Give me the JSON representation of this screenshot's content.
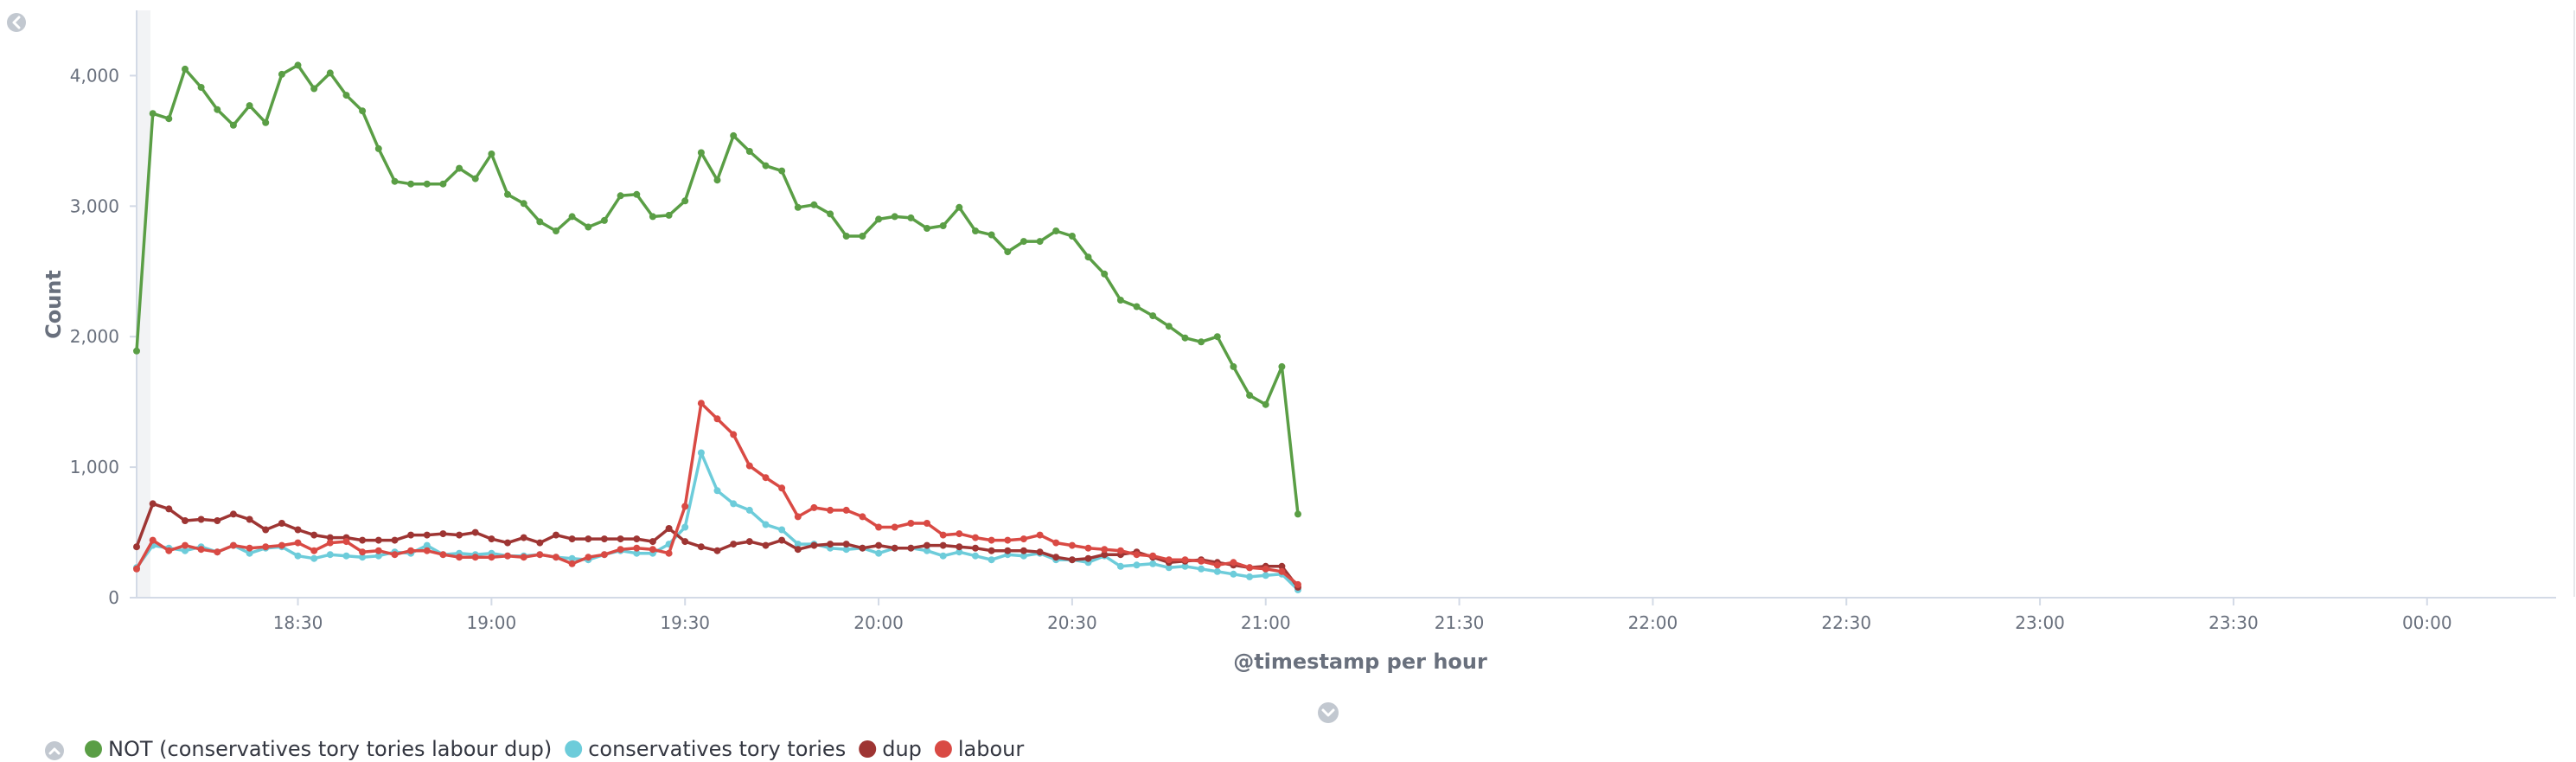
{
  "chart_data": {
    "type": "line",
    "title": "",
    "xlabel": "@timestamp per hour",
    "ylabel": "Count",
    "ylim": [
      0,
      4500
    ],
    "y_ticks": [
      0,
      1000,
      2000,
      3000,
      4000
    ],
    "y_tick_labels": [
      "0",
      "1,000",
      "2,000",
      "3,000",
      "4,000"
    ],
    "x_tick_labels": [
      "18:30",
      "19:00",
      "19:30",
      "20:00",
      "20:30",
      "21:00",
      "21:30",
      "22:00",
      "22:30",
      "23:00",
      "23:30",
      "00:00"
    ],
    "x_tick_minutes": [
      1110,
      1140,
      1170,
      1200,
      1230,
      1260,
      1290,
      1320,
      1350,
      1380,
      1410,
      1440
    ],
    "x_start_minutes": 1085,
    "x_step_minutes": 2.5,
    "x_range_minutes": [
      1085,
      1460
    ],
    "grid": false,
    "legend_position": "bottom-left",
    "series": [
      {
        "name": "NOT (conservatives tory tories labour dup)",
        "color": "#54b399",
        "line_color": "#5a9e45",
        "values": [
          1890,
          3710,
          3670,
          4050,
          3910,
          3740,
          3620,
          3770,
          3640,
          4010,
          4080,
          3900,
          4020,
          3850,
          3730,
          3440,
          3190,
          3170,
          3170,
          3170,
          3290,
          3210,
          3400,
          3090,
          3020,
          2880,
          2810,
          2920,
          2840,
          2890,
          3080,
          3090,
          2920,
          2930,
          3040,
          3410,
          3200,
          3540,
          3420,
          3310,
          3270,
          2990,
          3010,
          2940,
          2770,
          2770,
          2900,
          2920,
          2910,
          2830,
          2850,
          2990,
          2810,
          2780,
          2650,
          2730,
          2730,
          2810,
          2770,
          2610,
          2480,
          2280,
          2230,
          2160,
          2080,
          1990,
          1960,
          2000,
          1770,
          1550,
          1480,
          1770,
          640
        ]
      },
      {
        "name": "conservatives tory tories",
        "color": "#6dccda",
        "values": [
          230,
          400,
          380,
          360,
          390,
          350,
          400,
          340,
          380,
          390,
          320,
          300,
          330,
          320,
          310,
          320,
          350,
          340,
          400,
          330,
          340,
          330,
          340,
          320,
          320,
          330,
          310,
          300,
          290,
          330,
          360,
          340,
          340,
          410,
          540,
          1110,
          820,
          720,
          670,
          560,
          520,
          410,
          410,
          380,
          370,
          380,
          340,
          380,
          380,
          360,
          320,
          350,
          320,
          290,
          330,
          320,
          340,
          290,
          290,
          270,
          320,
          240,
          250,
          260,
          230,
          240,
          220,
          200,
          180,
          160,
          170,
          180,
          60
        ]
      },
      {
        "name": "dup",
        "color": "#9e3533",
        "values": [
          390,
          720,
          680,
          590,
          600,
          590,
          640,
          600,
          520,
          570,
          520,
          480,
          460,
          460,
          440,
          440,
          440,
          480,
          480,
          490,
          480,
          500,
          450,
          420,
          460,
          420,
          480,
          450,
          450,
          450,
          450,
          450,
          430,
          530,
          430,
          390,
          360,
          410,
          430,
          400,
          440,
          370,
          400,
          410,
          410,
          380,
          400,
          380,
          380,
          400,
          400,
          390,
          380,
          360,
          360,
          360,
          350,
          310,
          290,
          300,
          330,
          330,
          350,
          310,
          270,
          280,
          290,
          270,
          250,
          230,
          240,
          240,
          80
        ]
      },
      {
        "name": "labour",
        "color": "#e7664c",
        "line_color": "#d94a44",
        "values": [
          220,
          440,
          360,
          400,
          370,
          350,
          400,
          380,
          390,
          400,
          420,
          360,
          420,
          430,
          350,
          360,
          330,
          360,
          360,
          330,
          310,
          310,
          310,
          320,
          310,
          330,
          310,
          260,
          310,
          330,
          370,
          380,
          370,
          340,
          700,
          1490,
          1370,
          1250,
          1010,
          920,
          840,
          620,
          690,
          670,
          670,
          620,
          540,
          540,
          570,
          570,
          480,
          490,
          460,
          440,
          440,
          450,
          480,
          420,
          400,
          380,
          370,
          360,
          330,
          320,
          290,
          290,
          280,
          250,
          270,
          230,
          220,
          200,
          100
        ]
      }
    ]
  }
}
